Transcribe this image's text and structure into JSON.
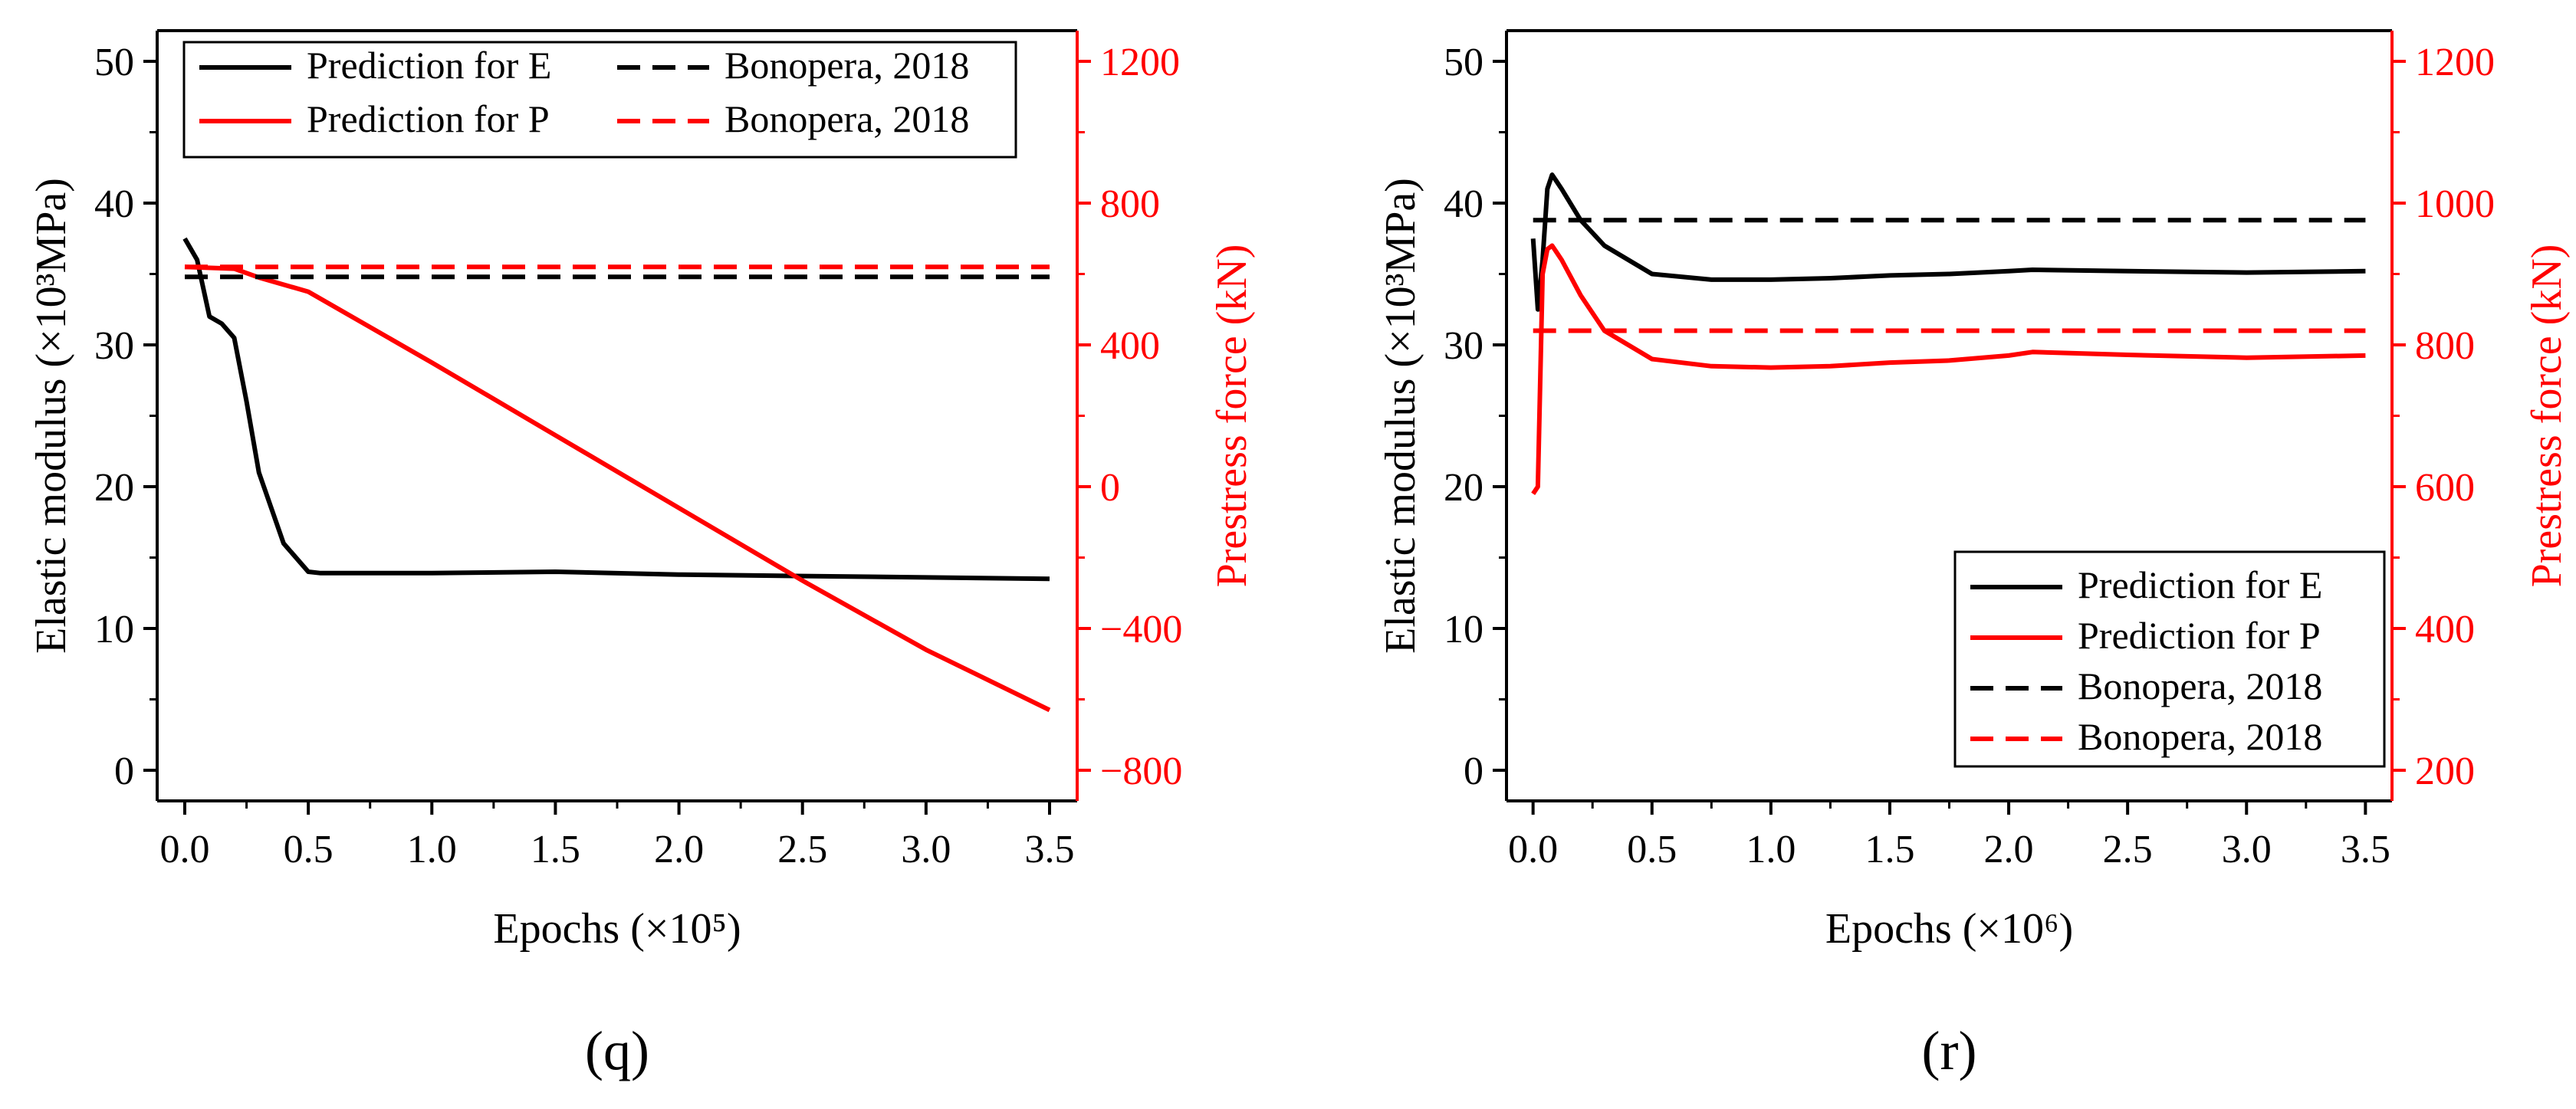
{
  "colors": {
    "black": "#000000",
    "red": "#ff0000"
  },
  "chart_data": [
    {
      "type": "line",
      "panel_label": "(q)",
      "xlabel": "Epochs (×10⁵)",
      "ylabel_left": "Elastic modulus (×10³MPa)",
      "ylabel_right": "Prestress force (kN)",
      "xlim": [
        0,
        3.5
      ],
      "ylim_left": [
        0,
        50
      ],
      "ylim_right": [
        -800,
        1200
      ],
      "x_ticks": [
        "0.0",
        "0.5",
        "1.0",
        "1.5",
        "2.0",
        "2.5",
        "3.0",
        "3.5"
      ],
      "y_left_ticks": [
        "0",
        "10",
        "20",
        "30",
        "40",
        "50"
      ],
      "y_right_ticks": [
        "−800",
        "−400",
        "0",
        "400",
        "800",
        "1200"
      ],
      "legend_position": "top",
      "legend_columns": 2,
      "series": [
        {
          "name": "Prediction for E",
          "axis": "left",
          "color": "#000000",
          "style": "solid",
          "x": [
            0,
            0.05,
            0.1,
            0.15,
            0.2,
            0.25,
            0.3,
            0.4,
            0.5,
            0.55,
            0.75,
            1.0,
            1.5,
            2.0,
            2.5,
            3.0,
            3.5
          ],
          "y": [
            37.5,
            36,
            32,
            31.5,
            30.5,
            26,
            21,
            16,
            14,
            13.9,
            13.9,
            13.9,
            14,
            13.8,
            13.7,
            13.6,
            13.5
          ]
        },
        {
          "name": "Prediction for P",
          "axis": "right",
          "color": "#ff0000",
          "style": "solid",
          "x": [
            0,
            0.2,
            0.3,
            0.5,
            1.0,
            1.5,
            2.0,
            2.5,
            3.0,
            3.5
          ],
          "y": [
            620,
            615,
            590,
            550,
            350,
            145,
            -60,
            -265,
            -460,
            -630
          ]
        },
        {
          "name": "Bonopera, 2018",
          "axis": "left",
          "color": "#000000",
          "style": "dashed",
          "x": [
            0,
            3.5
          ],
          "y": [
            34.8,
            34.8
          ]
        },
        {
          "name": "Bonopera, 2018",
          "axis": "right",
          "color": "#ff0000",
          "style": "dashed",
          "x": [
            0,
            3.5
          ],
          "y": [
            620,
            620
          ]
        }
      ]
    },
    {
      "type": "line",
      "panel_label": "(r)",
      "xlabel": "Epochs (×10⁶)",
      "ylabel_left": "Elastic modulus (×10³MPa)",
      "ylabel_right": "Prestress force (kN)",
      "xlim": [
        0,
        3.5
      ],
      "ylim_left": [
        0,
        50
      ],
      "ylim_right": [
        200,
        1200
      ],
      "x_ticks": [
        "0.0",
        "0.5",
        "1.0",
        "1.5",
        "2.0",
        "2.5",
        "3.0",
        "3.5"
      ],
      "y_left_ticks": [
        "0",
        "10",
        "20",
        "30",
        "40",
        "50"
      ],
      "y_right_ticks": [
        "200",
        "400",
        "600",
        "800",
        "1000",
        "1200"
      ],
      "legend_position": "bottom-right",
      "legend_columns": 1,
      "series": [
        {
          "name": "Prediction for E",
          "axis": "left",
          "color": "#000000",
          "style": "solid",
          "x": [
            0,
            0.02,
            0.04,
            0.06,
            0.08,
            0.12,
            0.2,
            0.3,
            0.5,
            0.75,
            1.0,
            1.25,
            1.5,
            1.75,
            2.0,
            2.1,
            2.5,
            3.0,
            3.5
          ],
          "y": [
            37.5,
            32.5,
            36,
            41,
            42,
            41,
            38.8,
            37,
            35,
            34.6,
            34.6,
            34.7,
            34.9,
            35.0,
            35.2,
            35.3,
            35.2,
            35.1,
            35.2
          ]
        },
        {
          "name": "Prediction for P",
          "axis": "right",
          "color": "#ff0000",
          "style": "solid",
          "x": [
            0,
            0.02,
            0.04,
            0.06,
            0.08,
            0.12,
            0.2,
            0.3,
            0.5,
            0.75,
            1.0,
            1.25,
            1.5,
            1.75,
            2.0,
            2.1,
            2.5,
            3.0,
            3.5
          ],
          "y": [
            590,
            600,
            900,
            935,
            940,
            920,
            870,
            820,
            780,
            770,
            768,
            770,
            775,
            778,
            785,
            790,
            786,
            782,
            785
          ]
        },
        {
          "name": "Bonopera, 2018",
          "axis": "left",
          "color": "#000000",
          "style": "dashed",
          "x": [
            0,
            3.5
          ],
          "y": [
            38.8,
            38.8
          ]
        },
        {
          "name": "Bonopera, 2018",
          "axis": "right",
          "color": "#ff0000",
          "style": "dashed",
          "x": [
            0,
            3.5
          ],
          "y": [
            820,
            820
          ]
        }
      ]
    }
  ]
}
